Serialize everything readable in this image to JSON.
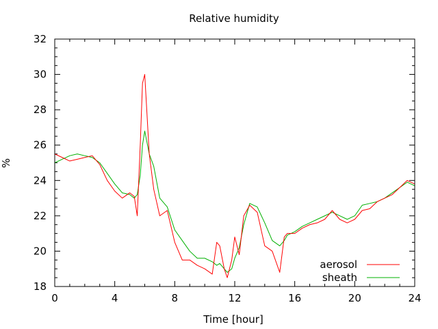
{
  "chart_data": {
    "type": "line",
    "title": "Relative humidity",
    "xlabel": "Time [hour]",
    "ylabel": "%",
    "xlim": [
      0,
      24
    ],
    "ylim": [
      18,
      32
    ],
    "xticks": [
      "0",
      "4",
      "8",
      "12",
      "16",
      "20",
      "24"
    ],
    "yticks": [
      "18",
      "20",
      "22",
      "24",
      "26",
      "28",
      "30",
      "32"
    ],
    "grid": false,
    "legend_position": "bottom-right",
    "series": [
      {
        "name": "aerosol",
        "color": "#ff0000",
        "points": [
          [
            0.0,
            25.5
          ],
          [
            0.5,
            25.3
          ],
          [
            1.0,
            25.1
          ],
          [
            1.5,
            25.2
          ],
          [
            2.0,
            25.3
          ],
          [
            2.5,
            25.4
          ],
          [
            3.0,
            24.9
          ],
          [
            3.5,
            24.0
          ],
          [
            4.0,
            23.4
          ],
          [
            4.5,
            23.0
          ],
          [
            5.0,
            23.3
          ],
          [
            5.3,
            23.1
          ],
          [
            5.5,
            22.0
          ],
          [
            5.7,
            26.0
          ],
          [
            5.85,
            29.5
          ],
          [
            6.0,
            30.0
          ],
          [
            6.1,
            28.5
          ],
          [
            6.3,
            25.5
          ],
          [
            6.6,
            23.5
          ],
          [
            7.0,
            22.0
          ],
          [
            7.5,
            22.3
          ],
          [
            8.0,
            20.5
          ],
          [
            8.5,
            19.5
          ],
          [
            9.0,
            19.5
          ],
          [
            9.5,
            19.2
          ],
          [
            10.0,
            19.0
          ],
          [
            10.5,
            18.7
          ],
          [
            10.8,
            20.5
          ],
          [
            11.0,
            20.3
          ],
          [
            11.3,
            19.0
          ],
          [
            11.5,
            18.5
          ],
          [
            11.8,
            19.5
          ],
          [
            12.0,
            20.8
          ],
          [
            12.3,
            19.8
          ],
          [
            12.6,
            22.0
          ],
          [
            13.0,
            22.6
          ],
          [
            13.5,
            22.2
          ],
          [
            14.0,
            20.3
          ],
          [
            14.5,
            20.0
          ],
          [
            15.0,
            18.8
          ],
          [
            15.3,
            20.8
          ],
          [
            15.5,
            21.0
          ],
          [
            16.0,
            21.0
          ],
          [
            16.5,
            21.3
          ],
          [
            17.0,
            21.5
          ],
          [
            17.5,
            21.6
          ],
          [
            18.0,
            21.8
          ],
          [
            18.5,
            22.3
          ],
          [
            19.0,
            21.8
          ],
          [
            19.5,
            21.6
          ],
          [
            20.0,
            21.8
          ],
          [
            20.5,
            22.3
          ],
          [
            21.0,
            22.4
          ],
          [
            21.5,
            22.8
          ],
          [
            22.0,
            23.0
          ],
          [
            22.5,
            23.2
          ],
          [
            23.0,
            23.6
          ],
          [
            23.5,
            24.0
          ],
          [
            24.0,
            23.8
          ]
        ]
      },
      {
        "name": "sheath",
        "color": "#00b000",
        "points": [
          [
            0.0,
            25.0
          ],
          [
            0.5,
            25.2
          ],
          [
            1.0,
            25.4
          ],
          [
            1.5,
            25.5
          ],
          [
            2.0,
            25.4
          ],
          [
            2.5,
            25.3
          ],
          [
            3.0,
            25.0
          ],
          [
            3.5,
            24.4
          ],
          [
            4.0,
            23.8
          ],
          [
            4.5,
            23.3
          ],
          [
            5.0,
            23.2
          ],
          [
            5.3,
            23.0
          ],
          [
            5.5,
            23.2
          ],
          [
            5.7,
            24.3
          ],
          [
            5.85,
            26.0
          ],
          [
            6.0,
            26.8
          ],
          [
            6.3,
            25.5
          ],
          [
            6.6,
            24.8
          ],
          [
            7.0,
            23.0
          ],
          [
            7.5,
            22.5
          ],
          [
            8.0,
            21.2
          ],
          [
            8.5,
            20.6
          ],
          [
            9.0,
            20.0
          ],
          [
            9.5,
            19.6
          ],
          [
            10.0,
            19.6
          ],
          [
            10.5,
            19.4
          ],
          [
            10.8,
            19.2
          ],
          [
            11.0,
            19.3
          ],
          [
            11.3,
            19.0
          ],
          [
            11.5,
            18.8
          ],
          [
            11.8,
            19.0
          ],
          [
            12.0,
            19.6
          ],
          [
            12.3,
            20.2
          ],
          [
            12.6,
            21.5
          ],
          [
            13.0,
            22.7
          ],
          [
            13.5,
            22.5
          ],
          [
            14.0,
            21.6
          ],
          [
            14.5,
            20.6
          ],
          [
            15.0,
            20.3
          ],
          [
            15.3,
            20.6
          ],
          [
            15.5,
            20.9
          ],
          [
            16.0,
            21.1
          ],
          [
            16.5,
            21.4
          ],
          [
            17.0,
            21.6
          ],
          [
            17.5,
            21.8
          ],
          [
            18.0,
            22.0
          ],
          [
            18.5,
            22.2
          ],
          [
            19.0,
            22.0
          ],
          [
            19.5,
            21.8
          ],
          [
            20.0,
            22.0
          ],
          [
            20.5,
            22.6
          ],
          [
            21.0,
            22.7
          ],
          [
            21.5,
            22.8
          ],
          [
            22.0,
            23.0
          ],
          [
            22.5,
            23.3
          ],
          [
            23.0,
            23.6
          ],
          [
            23.5,
            23.9
          ],
          [
            24.0,
            23.7
          ]
        ]
      }
    ]
  }
}
